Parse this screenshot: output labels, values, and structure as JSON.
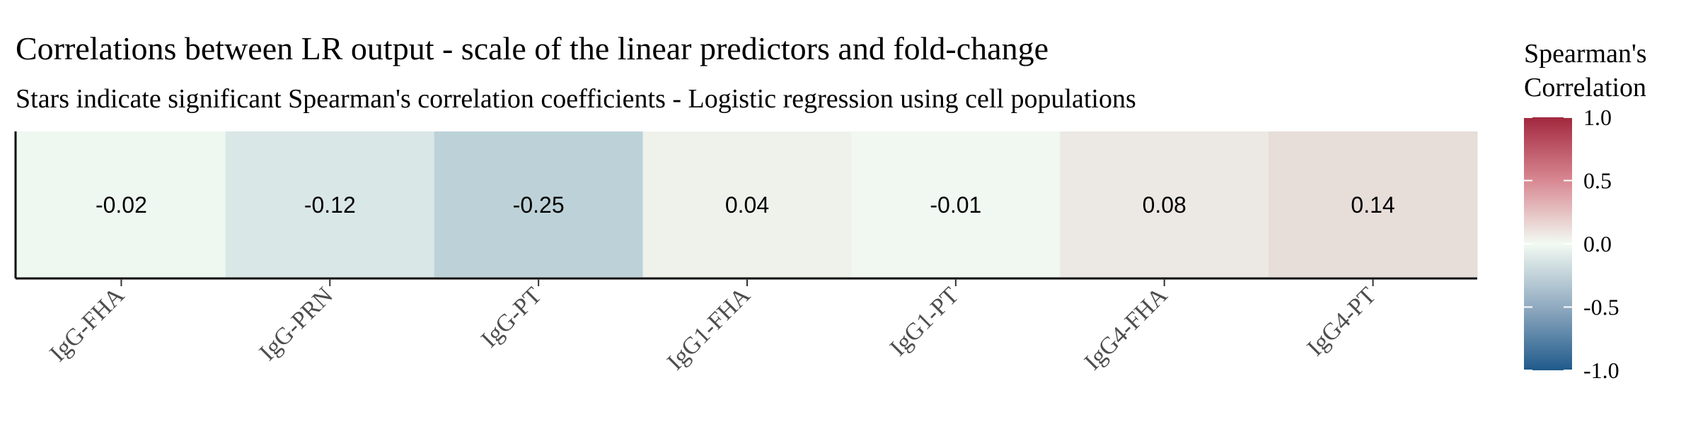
{
  "chart_data": {
    "type": "heatmap",
    "title": "Correlations between LR output - scale of the linear predictors and fold-change",
    "subtitle": "Stars indicate significant Spearman's correlation coefficients - Logistic regression using cell populations",
    "categories": [
      "IgG-FHA",
      "IgG-PRN",
      "IgG-PT",
      "IgG1-FHA",
      "IgG1-PT",
      "IgG4-FHA",
      "IgG4-PT"
    ],
    "values": [
      -0.02,
      -0.12,
      -0.25,
      0.04,
      -0.01,
      0.08,
      0.14
    ],
    "value_labels": [
      "-0.02",
      "-0.12",
      "-0.25",
      "0.04",
      "-0.01",
      "0.08",
      "0.14"
    ],
    "legend": {
      "title_lines": [
        "Spearman's",
        "Correlation"
      ],
      "limits": [
        -1.0,
        1.0
      ],
      "ticks": [
        1.0,
        0.5,
        0.0,
        -0.5,
        -1.0
      ],
      "tick_labels": [
        "1.0",
        "0.5",
        "0.0",
        "-0.5",
        "-1.0"
      ],
      "position": "right"
    },
    "colors": {
      "low": "#1f5a8b",
      "mid": "#f2faf2",
      "high": "#a2283e"
    },
    "grid": false
  }
}
